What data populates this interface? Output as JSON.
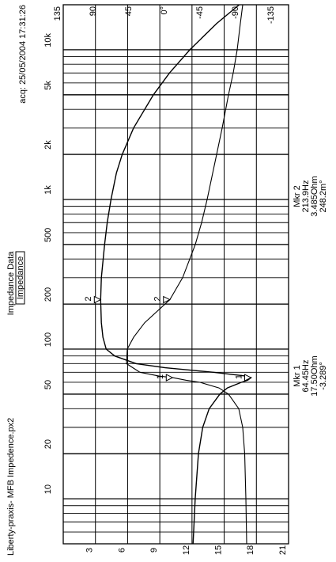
{
  "header": {
    "title": "Impedance Data",
    "tab": "Impedance",
    "file": "Liberty-praxis- MFB Impedence.px2",
    "acq": "acq: 25/05/2004 17:31:26"
  },
  "markers": {
    "mkr1": {
      "label": "Mkr 1",
      "freq": "64.45Hz",
      "imp": "17.50Ohm",
      "phase": "-3.289°"
    },
    "mkr2": {
      "label": "Mkr 2",
      "freq": "213.9Hz",
      "imp": "3.485Ohm",
      "phase": "248.2m°"
    },
    "icon1": "1",
    "icon2": "2"
  },
  "chart_data": {
    "type": "line",
    "x_scale": "log",
    "xlim": [
      5,
      20000
    ],
    "x_ticks": [
      10,
      20,
      50,
      100,
      200,
      500,
      1000,
      2000,
      5000,
      10000
    ],
    "x_tick_labels": [
      "10",
      "20",
      "50",
      "100",
      "200",
      "500",
      "1k",
      "2k",
      "5k",
      "10k"
    ],
    "y_left_lim": [
      0,
      21
    ],
    "y_left_ticks": [
      3,
      6,
      9,
      12,
      15,
      18,
      21
    ],
    "y_left_labels": [
      "3",
      "6",
      "9",
      "12",
      "15",
      "18",
      "21"
    ],
    "y_right_lim": [
      -150,
      135
    ],
    "y_right_ticks": [
      -135,
      -90,
      -45,
      0,
      45,
      90,
      135
    ],
    "y_right_labels": [
      "-135",
      "-90",
      "-45",
      "0°",
      "45",
      "90",
      "135"
    ],
    "grid": true,
    "series": [
      {
        "axis": "left",
        "x": [
          5,
          10,
          20,
          30,
          40,
          50,
          55,
          60,
          62,
          64.45,
          66,
          70,
          75,
          80,
          90,
          100,
          120,
          150,
          213.9,
          300,
          500,
          700,
          1000,
          1500,
          2000,
          3000,
          5000,
          7000,
          10000,
          15000,
          20000
        ],
        "y": [
          12.1,
          12.3,
          12.6,
          13.0,
          13.6,
          14.6,
          15.3,
          16.6,
          17.2,
          17.5,
          17.0,
          14.0,
          9.5,
          6.8,
          4.8,
          4.0,
          3.7,
          3.55,
          3.485,
          3.55,
          3.85,
          4.1,
          4.45,
          4.95,
          5.5,
          6.55,
          8.4,
          9.9,
          11.8,
          14.3,
          16.4
        ]
      },
      {
        "axis": "right",
        "x": [
          5,
          10,
          20,
          30,
          40,
          50,
          55,
          60,
          62,
          64.45,
          66,
          70,
          80,
          100,
          120,
          150,
          213.9,
          300,
          500,
          700,
          1000,
          1500,
          2000,
          3000,
          5000,
          7000,
          10000,
          15000,
          20000
        ],
        "y": [
          -97,
          -96,
          -94.5,
          -92,
          -87,
          -74,
          -62,
          -38,
          -20,
          -3.289,
          14,
          38,
          55,
          54,
          46,
          32,
          0.248,
          -16,
          -32,
          -40,
          -47,
          -54,
          -59,
          -66,
          -74,
          -80,
          -85,
          -89,
          -92
        ]
      }
    ],
    "marker_points": [
      {
        "x": 64.45,
        "y": 17.5,
        "axis": "left"
      },
      {
        "x": 64.45,
        "y": -3.289,
        "axis": "right"
      },
      {
        "x": 213.9,
        "y": 3.485,
        "axis": "left"
      },
      {
        "x": 213.9,
        "y": 0.248,
        "axis": "right"
      }
    ]
  }
}
